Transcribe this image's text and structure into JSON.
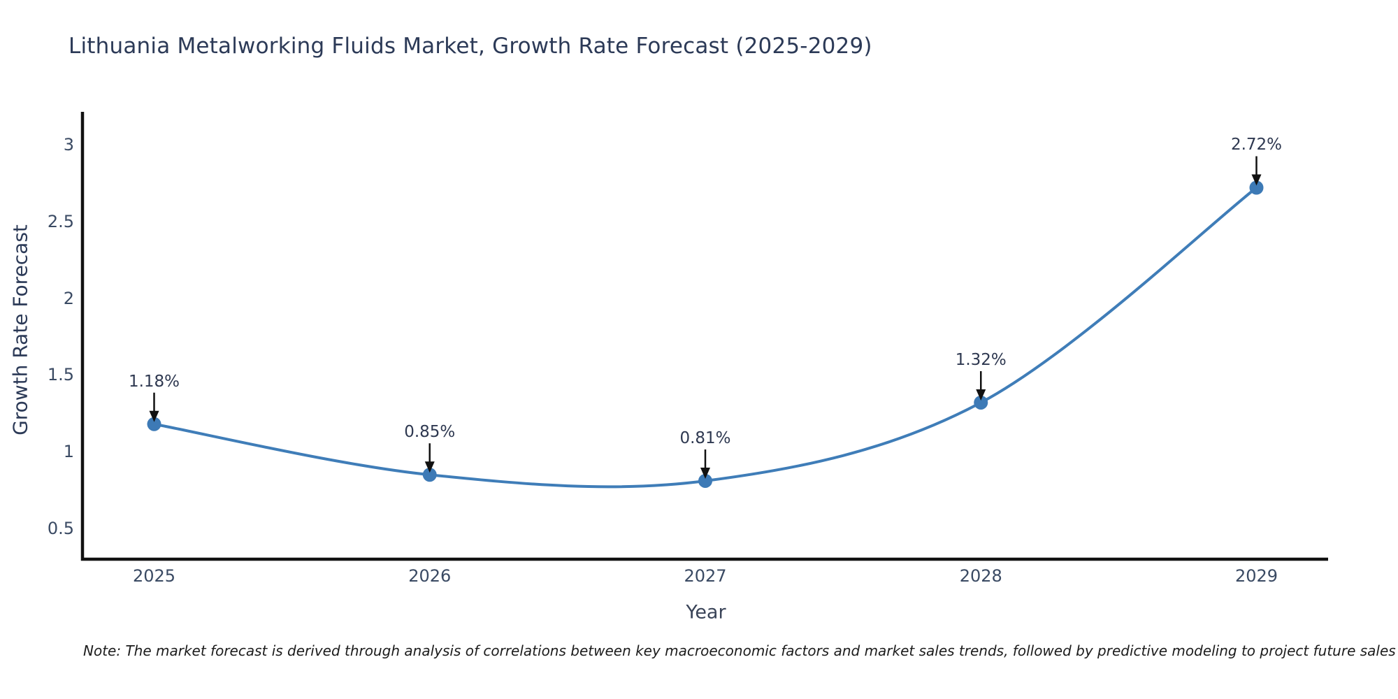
{
  "chart_data": {
    "type": "line",
    "title": "Lithuania Metalworking Fluids Market, Growth Rate Forecast (2025-2029)",
    "xlabel": "Year",
    "ylabel": "Growth Rate Forecast",
    "categories": [
      2025,
      2026,
      2027,
      2028,
      2029
    ],
    "series": [
      {
        "name": "Growth Rate Forecast",
        "values": [
          1.18,
          0.85,
          0.81,
          1.32,
          2.72
        ]
      }
    ],
    "point_labels": [
      "1.18%",
      "0.85%",
      "0.81%",
      "1.32%",
      "2.72%"
    ],
    "xtick_labels": [
      "2025",
      "2026",
      "2027",
      "2028",
      "2029"
    ],
    "ytick_values": [
      0.5,
      1,
      1.5,
      2,
      2.5,
      3
    ],
    "ytick_labels": [
      "0.5",
      "1",
      "1.5",
      "2",
      "2.5",
      "3"
    ],
    "xlim": [
      2024.74,
      2029.26
    ],
    "ylim": [
      0.3,
      3.214
    ],
    "grid": false,
    "legend": "none",
    "curve": "spline",
    "line_color": "#3f7db8",
    "marker_color": "#3d7ab6",
    "axis_color": "#111111",
    "annotation_arrow_color": "#111111",
    "note": "Note: The market forecast is derived through analysis of correlations between key macroeconomic factors and market sales trends, followed by predictive modeling to project future sales"
  }
}
